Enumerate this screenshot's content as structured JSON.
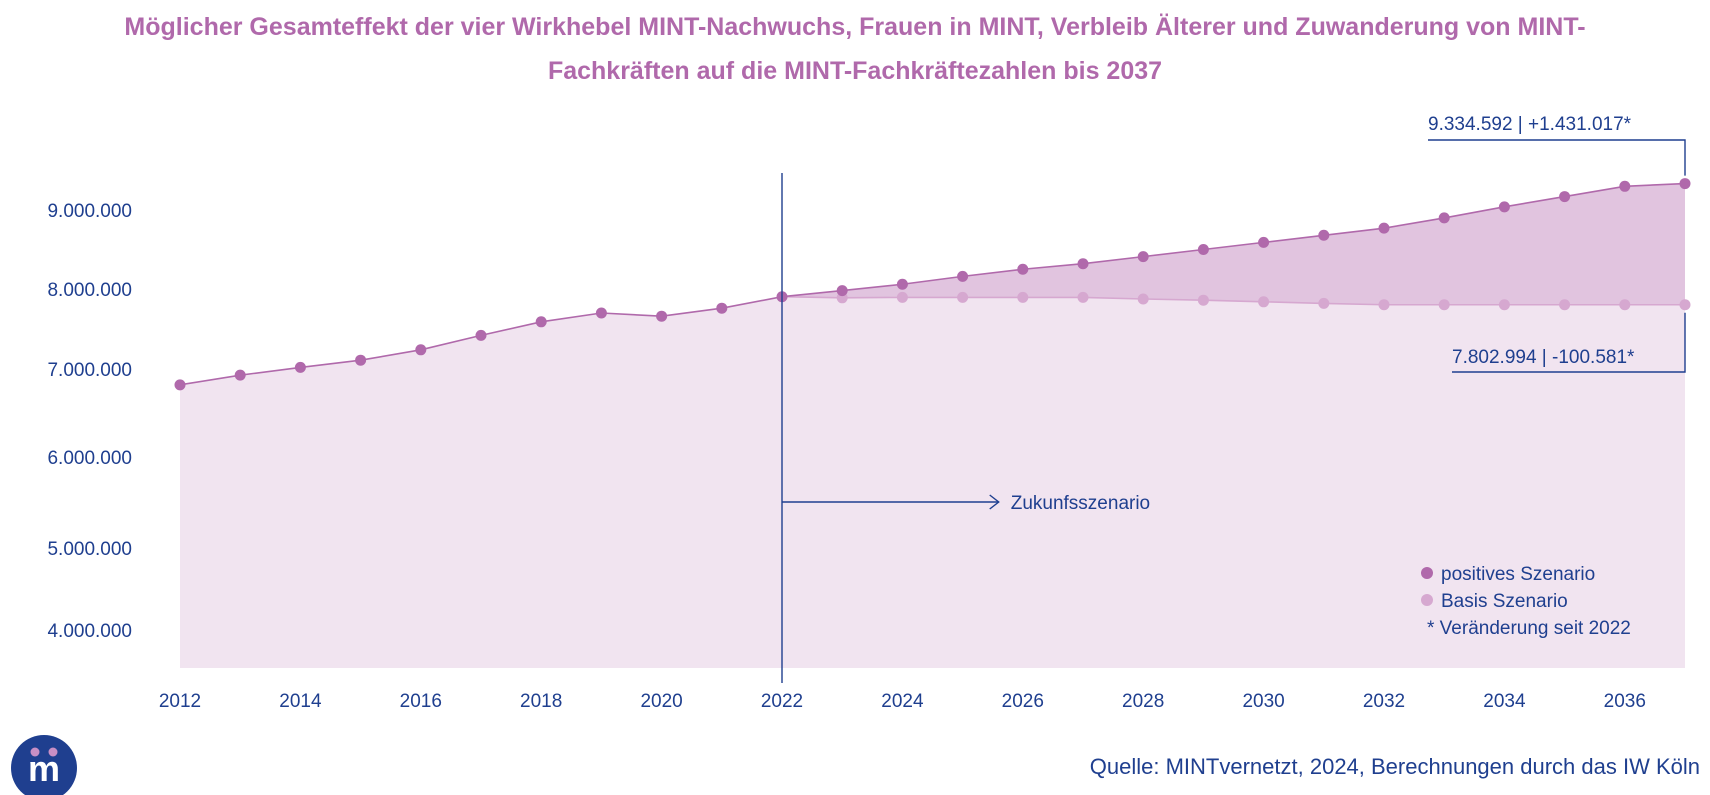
{
  "colors": {
    "title": "#b069ab",
    "text": "#1f3f8f",
    "positive_series": "#b069ab",
    "basis_series": "#d6a8d0",
    "fill_base": "#f1e4f0",
    "fill_gap": "#e1c4df",
    "logo_bg": "#1f3f8f",
    "logo_dots": "#c88fc5"
  },
  "title_lines": [
    "Möglicher Gesamteffekt der vier Wirkhebel MINT-Nachwuchs, Frauen in MINT, Verbleib Älterer und Zuwanderung von MINT-",
    "Fachkräften auf die MINT-Fachkräftezahlen bis 2037"
  ],
  "annotations": {
    "positive_end": "9.334.592 | +1.431.017*",
    "basis_end": "7.802.994 | -100.581*",
    "scenario_label": "Zukunfsszenario"
  },
  "legend": {
    "position": "bottom-right",
    "items": [
      "positives Szenario",
      "Basis Szenario",
      "* Veränderung seit 2022"
    ]
  },
  "source": "Quelle: MINTvernetzt, 2024, Berechnungen durch das IW Köln",
  "logo": {
    "icon": "mintvernetzt-logo-icon",
    "text": "m"
  },
  "chart_data": {
    "type": "area",
    "x": [
      2012,
      2013,
      2014,
      2015,
      2016,
      2017,
      2018,
      2019,
      2020,
      2021,
      2022,
      2023,
      2024,
      2025,
      2026,
      2027,
      2028,
      2029,
      2030,
      2031,
      2032,
      2033,
      2034,
      2035,
      2036,
      2037
    ],
    "x_tick_labels": [
      "2012",
      "2014",
      "2016",
      "2018",
      "2020",
      "2022",
      "2024",
      "2026",
      "2028",
      "2030",
      "2032",
      "2034",
      "2036"
    ],
    "y_tick_labels": [
      "9.000.000",
      "8.000.000",
      "7.000.000",
      "6.000.000",
      "5.000.000",
      "4.000.000"
    ],
    "y_ticks": [
      9000000,
      8000000,
      7000000,
      6000000,
      5000000,
      4000000
    ],
    "vline_x": 2022,
    "series": [
      {
        "name": "positives Szenario",
        "values": [
          6820000,
          6930000,
          7020000,
          7110000,
          7240000,
          7420000,
          7590000,
          7700000,
          7660000,
          7760000,
          7903575,
          7980000,
          8060000,
          8160000,
          8250000,
          8320000,
          8410000,
          8500000,
          8590000,
          8680000,
          8770000,
          8900000,
          9040000,
          9170000,
          9300000,
          9334592
        ]
      },
      {
        "name": "Basis Szenario",
        "values": [
          null,
          null,
          null,
          null,
          null,
          null,
          null,
          null,
          null,
          null,
          7903575,
          7890000,
          7895000,
          7895000,
          7895000,
          7895000,
          7875000,
          7860000,
          7840000,
          7820000,
          7803000,
          7803000,
          7803000,
          7803000,
          7803000,
          7802994
        ]
      }
    ]
  }
}
